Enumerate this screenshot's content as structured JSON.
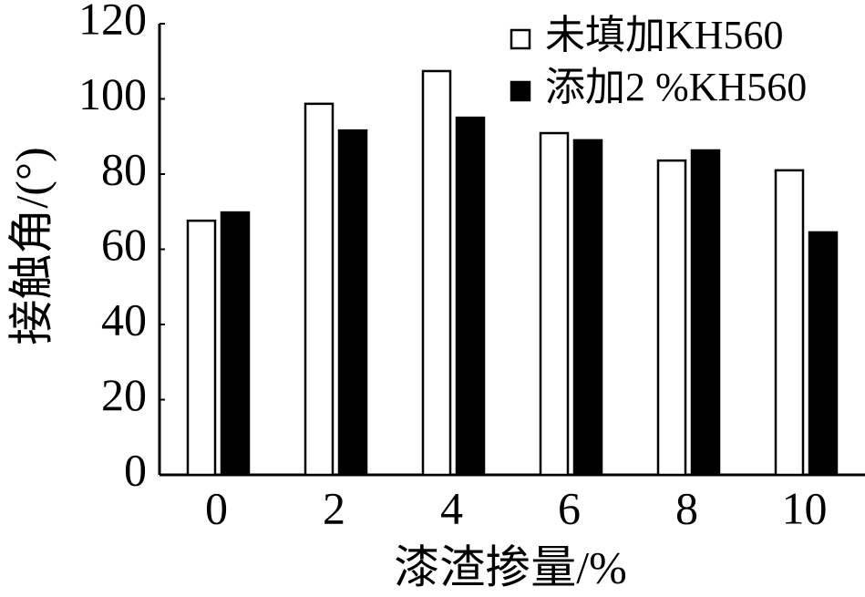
{
  "chart_data": {
    "type": "bar",
    "x_label": "漆渣掺量/%",
    "y_label": "接触角/(°)",
    "categories": [
      "0",
      "2",
      "4",
      "6",
      "8",
      "10"
    ],
    "series": [
      {
        "name": "未填加KH560",
        "color": "#ffffff",
        "values": [
          67.6,
          98.7,
          107.4,
          90.9,
          83.6,
          81.0
        ]
      },
      {
        "name": "添加2 %KH560",
        "color": "#000000",
        "values": [
          69.8,
          91.6,
          95.0,
          89.0,
          86.3,
          64.5
        ]
      }
    ],
    "ylim": [
      0,
      120
    ],
    "yticks": [
      0,
      20,
      40,
      60,
      80,
      100,
      120
    ],
    "grid": false,
    "legend": "upper right"
  }
}
